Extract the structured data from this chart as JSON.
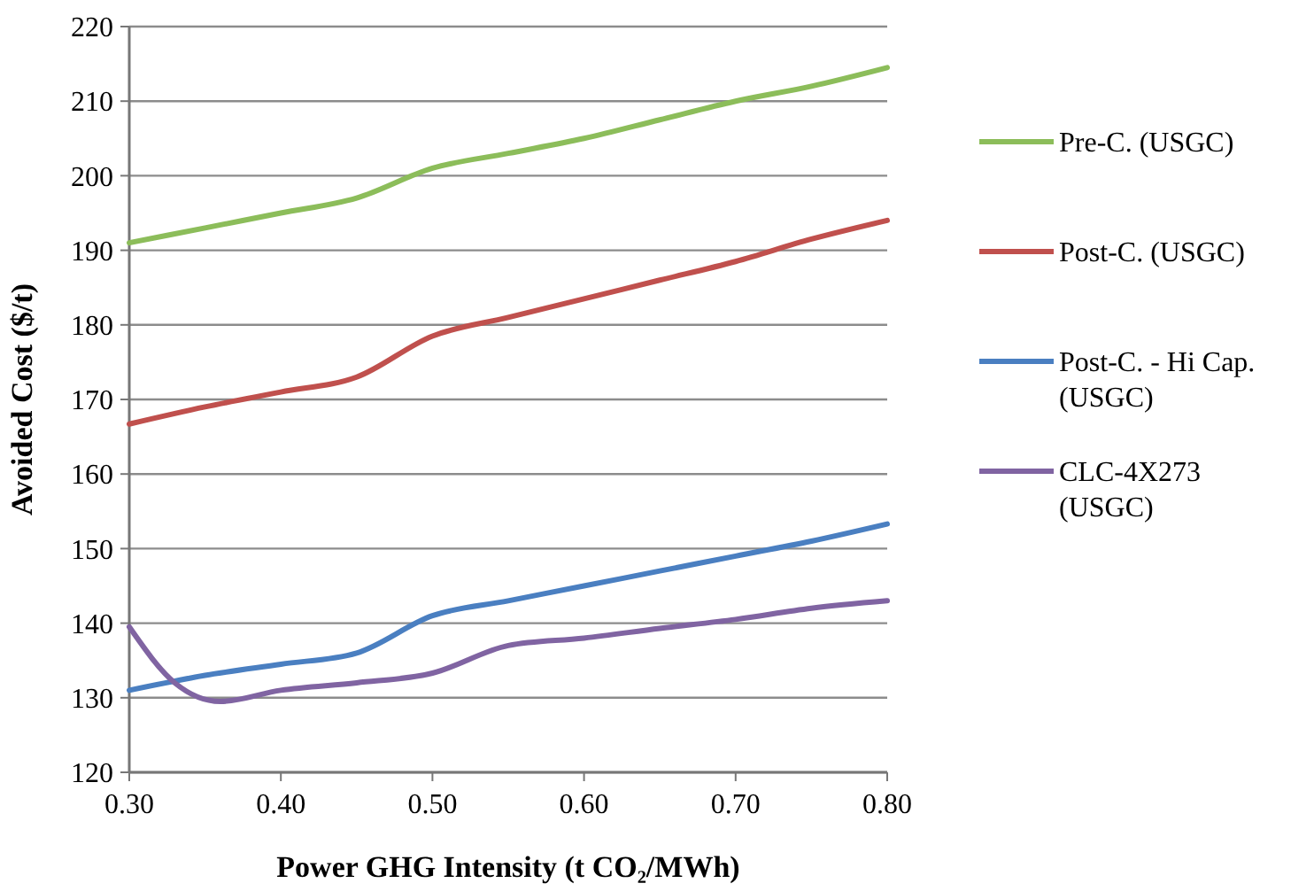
{
  "chart_data": {
    "type": "line",
    "xlabel": "Power GHG Intensity (t CO₂/MWh)",
    "ylabel": "Avoided Cost ($/t)",
    "xlim": [
      0.3,
      0.8
    ],
    "xticks": [
      {
        "value": 0.3,
        "label": "0.30"
      },
      {
        "value": 0.4,
        "label": "0.40"
      },
      {
        "value": 0.5,
        "label": "0.50"
      },
      {
        "value": 0.6,
        "label": "0.60"
      },
      {
        "value": 0.7,
        "label": "0.70"
      },
      {
        "value": 0.8,
        "label": "0.80"
      }
    ],
    "ylim": [
      120,
      220
    ],
    "yticks": [
      120,
      130,
      140,
      150,
      160,
      170,
      180,
      190,
      200,
      210,
      220
    ],
    "grid": "y",
    "legend": "right",
    "marker": "none",
    "line_style": "solid",
    "series": [
      {
        "name": "Pre-C. (USGC)",
        "color": "#8cbd5a",
        "x": [
          0.3,
          0.35,
          0.4,
          0.45,
          0.5,
          0.55,
          0.6,
          0.65,
          0.7,
          0.75,
          0.8
        ],
        "values": [
          191,
          193,
          195,
          197,
          201,
          203,
          205,
          207.5,
          210,
          212,
          214.5
        ]
      },
      {
        "name": "Post-C. (USGC)",
        "color": "#c0504d",
        "x": [
          0.3,
          0.35,
          0.4,
          0.45,
          0.5,
          0.55,
          0.6,
          0.65,
          0.7,
          0.75,
          0.8
        ],
        "values": [
          166.7,
          169,
          171,
          173,
          178.5,
          181,
          183.5,
          186,
          188.5,
          191.5,
          194
        ]
      },
      {
        "name": "Post-C. - Hi Cap. (USGC)",
        "color": "#4a7fc1",
        "x": [
          0.3,
          0.35,
          0.4,
          0.45,
          0.5,
          0.55,
          0.6,
          0.65,
          0.7,
          0.75,
          0.8
        ],
        "values": [
          131,
          133,
          134.5,
          136,
          141,
          143,
          145,
          147,
          149,
          151,
          153.3
        ]
      },
      {
        "name": "CLC-4X273 (USGC)",
        "color": "#8064a2",
        "x": [
          0.3,
          0.33,
          0.36,
          0.4,
          0.45,
          0.5,
          0.55,
          0.6,
          0.65,
          0.7,
          0.75,
          0.8
        ],
        "values": [
          139.5,
          132,
          129.5,
          131,
          132,
          133.3,
          137,
          138,
          139.3,
          140.5,
          142,
          143
        ]
      }
    ]
  }
}
